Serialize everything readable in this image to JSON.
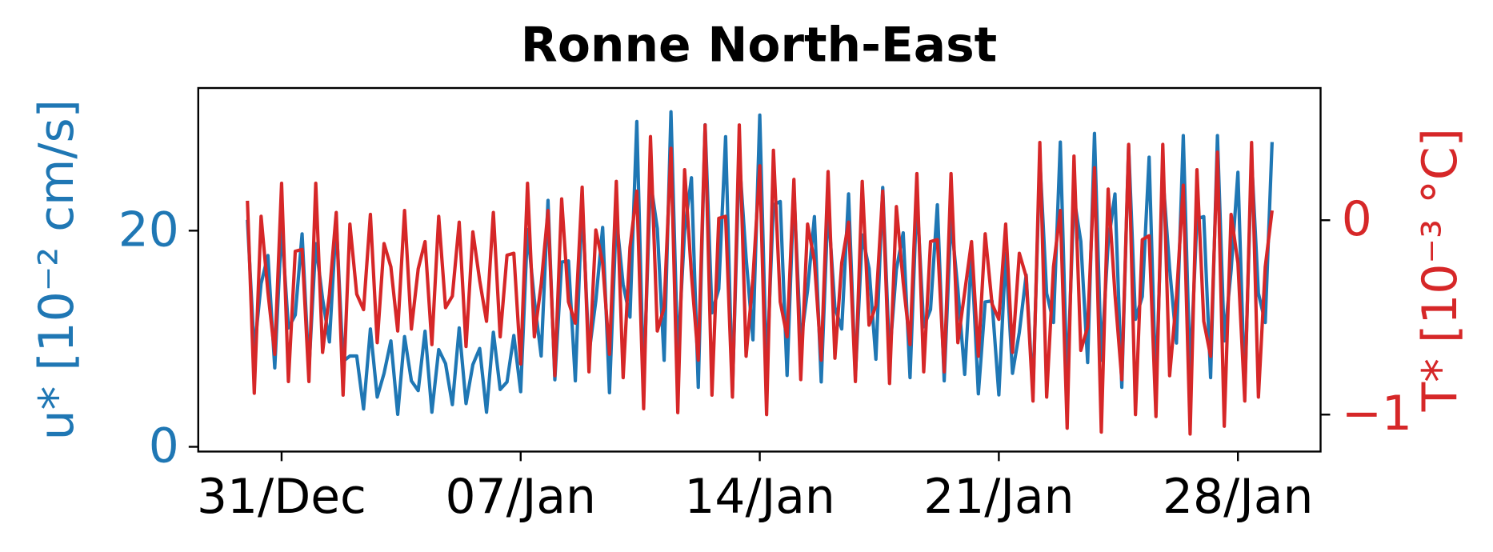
{
  "chart_data": {
    "type": "line",
    "title": "Ronne North-East",
    "ylabel": "u* [10⁻² cm/s]",
    "y2label": "T* [10⁻³ °C]",
    "xlim": [
      -2.44,
      30.42
    ],
    "xticks": [
      {
        "value": 0,
        "label": "31/Dec"
      },
      {
        "value": 7,
        "label": "07/Jan"
      },
      {
        "value": 14,
        "label": "14/Jan"
      },
      {
        "value": 21,
        "label": "21/Jan"
      },
      {
        "value": 28,
        "label": "28/Jan"
      }
    ],
    "ylim": [
      -0.44,
      33.2
    ],
    "yticks": [
      0,
      20
    ],
    "y2lim": [
      -1.19,
      0.68
    ],
    "y2ticks": [
      0,
      {
        "value": -1,
        "label": "−1"
      }
    ],
    "grid": false,
    "x": [
      -1,
      -0.8,
      -0.6,
      -0.4,
      -0.2,
      0,
      0.2,
      0.4,
      0.6,
      0.8,
      1,
      1.2,
      1.4,
      1.6,
      1.8,
      2,
      2.2,
      2.4,
      2.6,
      2.8,
      3,
      3.2,
      3.4,
      3.6,
      3.8,
      4,
      4.2,
      4.4,
      4.6,
      4.8,
      5,
      5.2,
      5.4,
      5.6,
      5.8,
      6,
      6.2,
      6.4,
      6.6,
      6.8,
      7,
      7.2,
      7.4,
      7.6,
      7.8,
      8,
      8.2,
      8.4,
      8.6,
      8.8,
      9,
      9.2,
      9.4,
      9.6,
      9.8,
      10,
      10.2,
      10.4,
      10.6,
      10.8,
      11,
      11.2,
      11.4,
      11.6,
      11.8,
      12,
      12.2,
      12.4,
      12.6,
      12.8,
      13,
      13.2,
      13.4,
      13.6,
      13.8,
      14,
      14.2,
      14.4,
      14.6,
      14.8,
      15,
      15.2,
      15.4,
      15.6,
      15.8,
      16,
      16.2,
      16.4,
      16.6,
      16.8,
      17,
      17.2,
      17.4,
      17.6,
      17.8,
      18,
      18.2,
      18.4,
      18.6,
      18.8,
      19,
      19.2,
      19.4,
      19.6,
      19.8,
      20,
      20.2,
      20.4,
      20.6,
      20.8,
      21,
      21.2,
      21.4,
      21.6,
      21.8,
      22,
      22.2,
      22.4,
      22.6,
      22.8,
      23,
      23.2,
      23.4,
      23.6,
      23.8,
      24,
      24.2,
      24.4,
      24.6,
      24.8,
      25,
      25.2,
      25.4,
      25.6,
      25.8,
      26,
      26.2,
      26.4,
      26.6,
      26.8,
      27,
      27.2,
      27.4,
      27.6,
      27.8,
      28,
      28.2,
      28.4,
      28.6,
      28.8,
      29
    ],
    "series": [
      {
        "name": "u*",
        "color": "#1f77b4",
        "axis": "y",
        "values": [
          21.0,
          8.8,
          15.1,
          17.7,
          7.3,
          20.4,
          11.0,
          12.2,
          19.7,
          7.1,
          18.8,
          13.7,
          9.7,
          20.9,
          7.9,
          8.4,
          8.4,
          3.5,
          10.9,
          4.6,
          6.8,
          9.8,
          3.0,
          10.2,
          6.1,
          5.2,
          10.7,
          3.2,
          9.0,
          7.7,
          3.9,
          11.0,
          4.0,
          7.6,
          9.1,
          3.2,
          10.6,
          5.3,
          6.0,
          10.3,
          5.1,
          20.1,
          13.6,
          8.4,
          22.8,
          6.2,
          17.1,
          17.2,
          6.1,
          22.8,
          8.6,
          13.5,
          20.3,
          5.0,
          21.3,
          15.0,
          12.0,
          30.1,
          5.7,
          24.6,
          20.2,
          8.0,
          31.0,
          8.3,
          20.0,
          24.9,
          5.5,
          29.8,
          12.4,
          14.6,
          28.7,
          5.1,
          26.8,
          17.5,
          9.9,
          30.7,
          6.7,
          22.4,
          22.7,
          6.6,
          23.8,
          9.6,
          14.5,
          21.3,
          6.0,
          22.3,
          12.9,
          10.9,
          23.4,
          6.5,
          19.6,
          16.5,
          8.1,
          24.0,
          8.3,
          16.4,
          19.8,
          6.4,
          23.2,
          11.1,
          12.7,
          22.4,
          6.1,
          21.1,
          14.6,
          6.7,
          17.9,
          4.9,
          13.4,
          13.5,
          4.8,
          17.9,
          6.8,
          10.6,
          15.9,
          5.0,
          26.7,
          14.2,
          11.5,
          28.2,
          5.6,
          23.1,
          19.0,
          7.8,
          29.0,
          8.0,
          18.8,
          23.4,
          5.5,
          27.9,
          11.8,
          13.9,
          26.8,
          5.1,
          25.2,
          16.5,
          9.6,
          28.8,
          6.6,
          21.1,
          21.3,
          6.4,
          28.8,
          9.8,
          16.3,
          25.4,
          5.0,
          26.7,
          14.2,
          11.5,
          28.2
        ]
      },
      {
        "name": "T*",
        "color": "#d62728",
        "axis": "y2",
        "values": [
          0.1,
          -0.89,
          0.02,
          -0.37,
          -0.69,
          0.19,
          -0.83,
          -0.16,
          -0.15,
          -0.83,
          0.19,
          -0.68,
          -0.38,
          0.04,
          -0.9,
          -0.02,
          -0.38,
          -0.46,
          0.03,
          -0.63,
          -0.12,
          -0.24,
          -0.57,
          0.05,
          -0.56,
          -0.25,
          -0.11,
          -0.64,
          0.02,
          -0.45,
          -0.39,
          -0.01,
          -0.65,
          -0.06,
          -0.31,
          -0.52,
          0.04,
          -0.6,
          -0.18,
          -0.17,
          -0.74,
          0.19,
          -0.6,
          -0.33,
          0.05,
          -0.8,
          0.11,
          -0.42,
          -0.53,
          0.17,
          -0.78,
          -0.05,
          -0.22,
          -0.69,
          0.2,
          -0.81,
          -0.14,
          0.15,
          -0.97,
          0.43,
          -0.57,
          -0.45,
          0.37,
          -0.99,
          0.26,
          -0.28,
          -0.72,
          0.49,
          -0.9,
          0.01,
          0.02,
          -0.91,
          0.49,
          -0.7,
          -0.3,
          0.28,
          -1.0,
          0.36,
          -0.42,
          -0.6,
          0.21,
          -0.82,
          -0.02,
          -0.21,
          -0.72,
          0.25,
          -0.71,
          -0.22,
          -0.01,
          -0.83,
          0.2,
          -0.54,
          -0.44,
          0.15,
          -0.84,
          0.07,
          -0.32,
          -0.64,
          0.24,
          -0.78,
          -0.11,
          -0.1,
          -0.78,
          0.24,
          -0.63,
          -0.37,
          -0.11,
          -0.7,
          -0.07,
          -0.43,
          -0.51,
          -0.02,
          -0.68,
          -0.17,
          -0.29,
          -0.93,
          0.4,
          -0.91,
          -0.24,
          0.05,
          -1.07,
          0.33,
          -0.67,
          -0.55,
          0.27,
          -1.09,
          0.16,
          -0.38,
          -0.82,
          0.39,
          -1.0,
          -0.1,
          -0.08,
          -1.01,
          0.39,
          -0.8,
          -0.4,
          0.18,
          -1.1,
          0.26,
          -0.52,
          -0.7,
          0.35,
          -1.06,
          0.03,
          -0.22,
          -0.93,
          0.4,
          -0.91,
          -0.24,
          0.05
        ]
      }
    ]
  }
}
